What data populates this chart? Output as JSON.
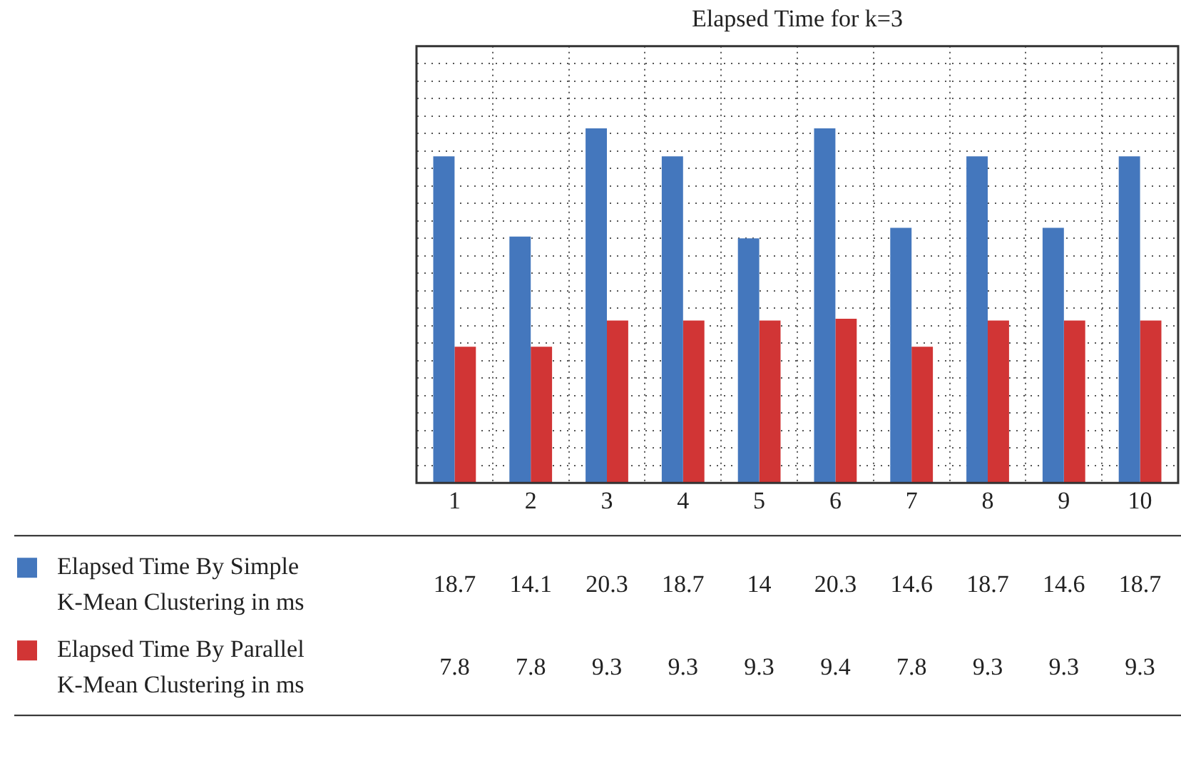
{
  "chart_data": {
    "type": "bar",
    "title": "Elapsed Time for k=3",
    "categories": [
      "1",
      "2",
      "3",
      "4",
      "5",
      "6",
      "7",
      "8",
      "9",
      "10"
    ],
    "series": [
      {
        "name": "Elapsed Time By Simple K-Mean Clustering in ms",
        "color": "#4477bd",
        "values": [
          18.7,
          14.1,
          20.3,
          18.7,
          14,
          20.3,
          14.6,
          18.7,
          14.6,
          18.7
        ]
      },
      {
        "name": "Elapsed Time By Parallel K-Mean Clustering in ms",
        "color": "#d13535",
        "values": [
          7.8,
          7.8,
          9.3,
          9.3,
          9.3,
          9.4,
          7.8,
          9.3,
          9.3,
          9.3
        ]
      }
    ],
    "ylim": [
      0,
      25
    ],
    "yticks": [
      {
        "value": 0,
        "label": null
      },
      {
        "value": 1,
        "label": null
      },
      {
        "value": 2,
        "label": null
      },
      {
        "value": 3,
        "label": null
      },
      {
        "value": 4,
        "label": null
      },
      {
        "value": 5,
        "label": null
      },
      {
        "value": 6,
        "label": null
      },
      {
        "value": 7,
        "label": null
      },
      {
        "value": 8,
        "label": null
      },
      {
        "value": 9,
        "label": null
      },
      {
        "value": 10,
        "label": null
      },
      {
        "value": 11,
        "label": null
      },
      {
        "value": 12,
        "label": null
      },
      {
        "value": 13,
        "label": null
      },
      {
        "value": 14,
        "label": null
      },
      {
        "value": 15,
        "label": null
      },
      {
        "value": 16,
        "label": null
      },
      {
        "value": 17,
        "label": null
      },
      {
        "value": 18,
        "label": null
      },
      {
        "value": 19,
        "label": null
      },
      {
        "value": 20,
        "label": null
      },
      {
        "value": 21,
        "label": null
      },
      {
        "value": 22,
        "label": null
      },
      {
        "value": 23,
        "label": null
      },
      {
        "value": 24,
        "label": null
      },
      {
        "value": 25,
        "label": null
      }
    ],
    "tick_labels": "x",
    "grid": true,
    "legend": "bottom left",
    "data_labels": true
  }
}
